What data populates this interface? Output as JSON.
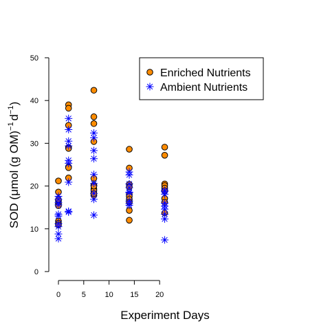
{
  "chart_data": {
    "type": "scatter",
    "title": "",
    "xlabel": "Experiment Days",
    "ylabel_parts": [
      "SOD (",
      "μ",
      "mol (g OM)",
      "−1",
      "d",
      "−1",
      ")"
    ],
    "xlim": [
      0,
      20
    ],
    "ylim": [
      0,
      50
    ],
    "x_ticks": [
      0,
      5,
      10,
      15,
      20
    ],
    "y_ticks": [
      0,
      10,
      20,
      30,
      40,
      50
    ],
    "grid": false,
    "legend_position": "top-right",
    "series": [
      {
        "name": "Enriched Nutrients",
        "marker": "circle",
        "color": "#ff8c00",
        "x": [
          0,
          0,
          0,
          0,
          0,
          0,
          0,
          0,
          0,
          2,
          2,
          2,
          2,
          2,
          2,
          2,
          2,
          7,
          7,
          7,
          7,
          7,
          7,
          7,
          7,
          7,
          7,
          7,
          14,
          14,
          14,
          14,
          14,
          14,
          14,
          14,
          14,
          14,
          21,
          21,
          21,
          21,
          21,
          21,
          21,
          21,
          21
        ],
        "y": [
          21.2,
          18.6,
          16.5,
          15.9,
          15.4,
          11.8,
          11.3,
          10.9,
          16.8,
          39.0,
          38.2,
          34.2,
          29.0,
          28.8,
          24.5,
          24.3,
          21.9,
          42.4,
          36.2,
          34.6,
          30.4,
          21.8,
          20.2,
          19.3,
          18.9,
          17.8,
          18.2,
          20.0,
          28.6,
          24.2,
          20.4,
          19.8,
          18.0,
          17.6,
          16.9,
          16.2,
          14.3,
          12.0,
          29.1,
          27.2,
          20.5,
          20.1,
          19.5,
          18.9,
          17.1,
          16.2,
          13.7
        ]
      },
      {
        "name": "Ambient Nutrients",
        "marker": "asterisk",
        "color": "#0000ff",
        "x": [
          0,
          0,
          0,
          0,
          0,
          0,
          0,
          0,
          0,
          0,
          2,
          2,
          2,
          2,
          2,
          2,
          2,
          2,
          2,
          7,
          7,
          7,
          7,
          7,
          7,
          7,
          7,
          7,
          14,
          14,
          14,
          14,
          14,
          14,
          14,
          14,
          14,
          21,
          21,
          21,
          21,
          21,
          21,
          21,
          21,
          21
        ],
        "y": [
          17.6,
          16.9,
          16.1,
          13.4,
          13.0,
          11.2,
          10.5,
          8.8,
          7.7,
          15.6,
          35.8,
          33.2,
          30.5,
          29.4,
          26.0,
          25.3,
          20.9,
          14.1,
          13.9,
          32.4,
          31.3,
          28.3,
          26.4,
          22.7,
          20.6,
          18.3,
          16.9,
          13.2,
          23.3,
          22.6,
          20.5,
          19.6,
          18.6,
          16.5,
          15.9,
          15.5,
          18.4,
          19.0,
          18.7,
          18.1,
          16.0,
          15.3,
          14.6,
          13.4,
          12.3,
          7.4
        ]
      }
    ]
  }
}
